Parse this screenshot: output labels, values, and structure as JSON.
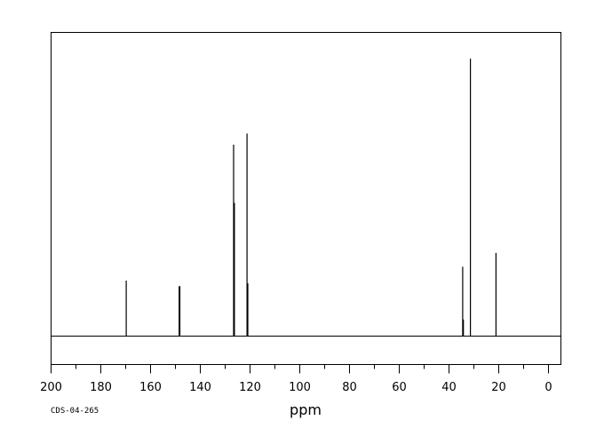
{
  "chart_data": {
    "type": "line",
    "title": "",
    "xlabel": "ppm",
    "ylabel": "",
    "xlim": [
      200,
      -5
    ],
    "x_reversed": true,
    "x_ticks": [
      200,
      180,
      160,
      140,
      120,
      100,
      80,
      60,
      40,
      20,
      0
    ],
    "grid": false,
    "peaks": [
      {
        "ppm": 169.8,
        "intensity": 0.2
      },
      {
        "ppm": 148.5,
        "intensity": 0.18
      },
      {
        "ppm": 148.2,
        "intensity": 0.18
      },
      {
        "ppm": 126.6,
        "intensity": 0.69
      },
      {
        "ppm": 126.3,
        "intensity": 0.48
      },
      {
        "ppm": 121.2,
        "intensity": 0.73
      },
      {
        "ppm": 120.9,
        "intensity": 0.19
      },
      {
        "ppm": 34.5,
        "intensity": 0.25
      },
      {
        "ppm": 34.2,
        "intensity": 0.06
      },
      {
        "ppm": 31.4,
        "intensity": 1.0
      },
      {
        "ppm": 21.1,
        "intensity": 0.3
      }
    ]
  },
  "footer": {
    "code": "CDS-04-265"
  }
}
